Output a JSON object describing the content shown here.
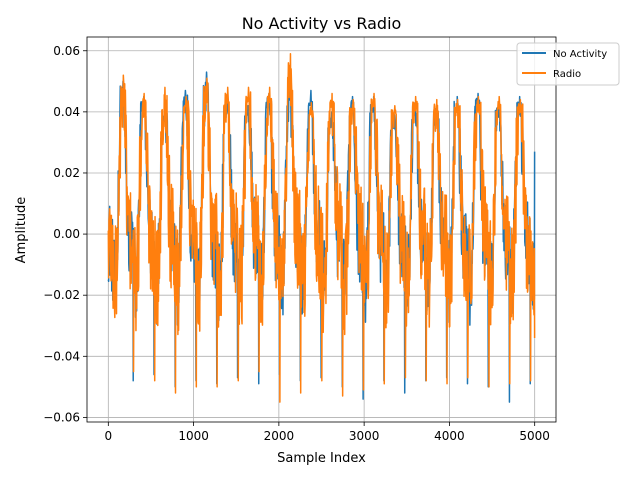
{
  "chart_data": {
    "type": "line",
    "title": "No Activity vs Radio",
    "xlabel": "Sample Index",
    "ylabel": "Amplitude",
    "xlim": [
      -250,
      5250
    ],
    "ylim": [
      -0.0615,
      0.0645
    ],
    "x_ticks": [
      0,
      1000,
      2000,
      3000,
      4000,
      5000
    ],
    "x_tick_labels": [
      "0",
      "1000",
      "2000",
      "3000",
      "4000",
      "5000"
    ],
    "y_ticks": [
      -0.06,
      -0.04,
      -0.02,
      0.0,
      0.02,
      0.04,
      0.06
    ],
    "y_tick_labels": [
      "−0.06",
      "−0.04",
      "−0.02",
      "0.00",
      "0.02",
      "0.04",
      "0.06"
    ],
    "grid": true,
    "legend_position": "top-right",
    "n_samples": 5000,
    "oscillation_period": 245,
    "series": [
      {
        "name": "No Activity",
        "color": "#1f77b4",
        "peak_values": [
          0.05,
          0.045,
          0.041,
          0.047,
          0.053,
          0.044,
          0.042,
          0.046,
          0.049,
          0.047,
          0.04,
          0.045,
          0.045,
          0.039,
          0.043,
          0.041,
          0.045,
          0.046,
          0.043,
          0.045,
          0.043
        ],
        "trough_values": [
          -0.048,
          -0.046,
          -0.05,
          -0.048,
          -0.049,
          -0.047,
          -0.049,
          -0.046,
          -0.048,
          -0.047,
          -0.05,
          -0.054,
          -0.048,
          -0.052,
          -0.048,
          -0.047,
          -0.049,
          -0.05,
          -0.055,
          -0.049,
          -0.05
        ],
        "end_value": 0.027
      },
      {
        "name": "Radio",
        "color": "#ff7f0e",
        "peak_values": [
          0.052,
          0.046,
          0.048,
          0.045,
          0.051,
          0.048,
          0.048,
          0.048,
          0.059,
          0.043,
          0.046,
          0.044,
          0.046,
          0.042,
          0.045,
          0.044,
          0.044,
          0.045,
          0.045,
          0.044,
          0.048
        ],
        "trough_values": [
          -0.045,
          -0.048,
          -0.052,
          -0.05,
          -0.05,
          -0.048,
          -0.045,
          -0.055,
          -0.052,
          -0.048,
          -0.053,
          -0.051,
          -0.049,
          -0.047,
          -0.048,
          -0.049,
          -0.047,
          -0.05,
          -0.049,
          -0.048,
          -0.049
        ],
        "end_value": -0.034
      }
    ]
  }
}
